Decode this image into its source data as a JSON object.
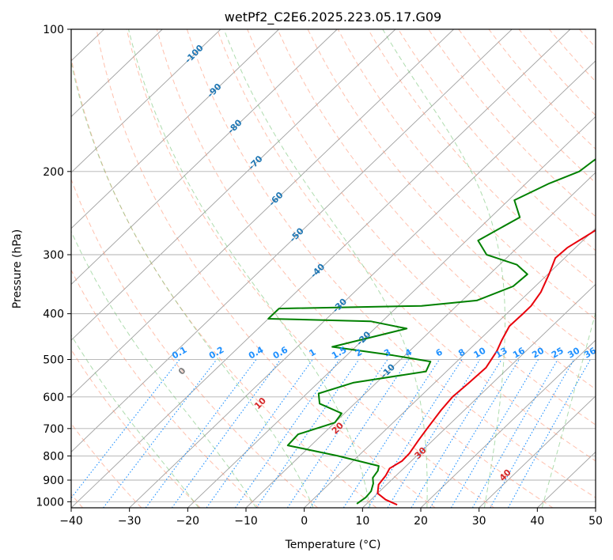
{
  "chart_data": {
    "type": "skew-t log-p",
    "title": "wetPf2_C2E6.2025.223.05.17.G09",
    "xlabel": "Temperature (°C)",
    "ylabel": "Pressure (hPa)",
    "xlim": [
      -40,
      50
    ],
    "ylim": [
      1030,
      100
    ],
    "x_ticks": [
      -40,
      -30,
      -20,
      -10,
      0,
      10,
      20,
      30,
      40,
      50
    ],
    "x_tick_labels": [
      "−40",
      "−30",
      "−20",
      "−10",
      "0",
      "10",
      "20",
      "30",
      "40",
      "50"
    ],
    "y_ticks": [
      100,
      200,
      300,
      400,
      500,
      600,
      700,
      800,
      900,
      1000
    ],
    "y_tick_labels": [
      "100",
      "200",
      "300",
      "400",
      "500",
      "600",
      "700",
      "800",
      "900",
      "1000"
    ],
    "y_scale": "log",
    "grid": true,
    "colors": {
      "temperature": "#e8000b",
      "dewpoint": "#008000",
      "isotherm": "#a0a0a0",
      "dry_adiabat": "#ff8c69",
      "moist_adiabat": "#6cbf6c",
      "mixing_ratio": "#1e90ff",
      "isotherm_label": "#1f77b4",
      "dry_adiabat_label": "#d62728",
      "freezing_label": "#7f7f7f"
    },
    "series": [
      {
        "name": "",
        "role": "temperature",
        "points": [
          [
            15.4,
            1015
          ],
          [
            12.5,
            990
          ],
          [
            10.0,
            960
          ],
          [
            8.6,
            920
          ],
          [
            8.2,
            880
          ],
          [
            7.6,
            850
          ],
          [
            8.4,
            820
          ],
          [
            8.3,
            790
          ],
          [
            7.5,
            740
          ],
          [
            6.9,
            700
          ],
          [
            6.0,
            640
          ],
          [
            5.6,
            600
          ],
          [
            5.9,
            560
          ],
          [
            6.1,
            520
          ],
          [
            5.0,
            480
          ],
          [
            3.9,
            455
          ],
          [
            2.7,
            425
          ],
          [
            2.8,
            400
          ],
          [
            2.8,
            385
          ],
          [
            2.0,
            360
          ],
          [
            0.2,
            330
          ],
          [
            -1.6,
            305
          ],
          [
            -1.4,
            290
          ],
          [
            -0.3,
            275
          ],
          [
            1.2,
            255
          ],
          [
            2.4,
            240
          ],
          [
            4.0,
            225
          ],
          [
            5.5,
            210
          ],
          [
            7.2,
            200
          ],
          [
            9.2,
            185
          ],
          [
            11.0,
            170
          ],
          [
            13.0,
            155
          ],
          [
            15.5,
            140
          ],
          [
            17.0,
            128
          ],
          [
            19.0,
            120
          ],
          [
            21.0,
            110
          ],
          [
            22.2,
            105
          ],
          [
            22.6,
            100
          ]
        ]
      },
      {
        "name": "",
        "role": "dewpoint",
        "points": [
          [
            8.3,
            1010
          ],
          [
            8.7,
            980
          ],
          [
            8.5,
            950
          ],
          [
            7.5,
            915
          ],
          [
            6.4,
            890
          ],
          [
            6.0,
            860
          ],
          [
            5.3,
            840
          ],
          [
            -3.5,
            800
          ],
          [
            -14.0,
            760
          ],
          [
            -14.2,
            720
          ],
          [
            -10.0,
            680
          ],
          [
            -10.5,
            650
          ],
          [
            -16.0,
            620
          ],
          [
            -18.0,
            590
          ],
          [
            -14.0,
            560
          ],
          [
            -3.5,
            530
          ],
          [
            -4.5,
            505
          ],
          [
            -12.0,
            490
          ],
          [
            -24.0,
            470
          ],
          [
            -14.5,
            430
          ],
          [
            -22.0,
            415
          ],
          [
            -40.0,
            410
          ],
          [
            -40.0,
            390
          ],
          [
            -16.0,
            385
          ],
          [
            -7.5,
            375
          ],
          [
            -3.8,
            350
          ],
          [
            -3.5,
            330
          ],
          [
            -7.0,
            315
          ],
          [
            -14.0,
            300
          ],
          [
            -18.0,
            280
          ],
          [
            -15.0,
            250
          ],
          [
            -19.0,
            230
          ],
          [
            -16.0,
            212
          ],
          [
            -13.0,
            200
          ],
          [
            -12.5,
            190
          ],
          [
            -11.0,
            172
          ],
          [
            -6.0,
            150
          ],
          [
            -2.5,
            135
          ],
          [
            -1.5,
            122
          ],
          [
            2.0,
            108
          ],
          [
            5.0,
            100
          ]
        ]
      }
    ],
    "isotherm_labels": [
      {
        "value": -100,
        "text": "-100"
      },
      {
        "value": -90,
        "text": "-90"
      },
      {
        "value": -80,
        "text": "-80"
      },
      {
        "value": -70,
        "text": "-70"
      },
      {
        "value": -60,
        "text": "-60"
      },
      {
        "value": -50,
        "text": "-50"
      },
      {
        "value": -40,
        "text": "-40"
      },
      {
        "value": -30,
        "text": "-30"
      },
      {
        "value": -20,
        "text": "-20"
      },
      {
        "value": -10,
        "text": "-10"
      }
    ],
    "mixing_ratio_labels": [
      "0.1",
      "0.2",
      "0.4",
      "0.6",
      "1",
      "1.5",
      "2",
      "3",
      "4",
      "6",
      "8",
      "10",
      "13",
      "16",
      "20",
      "25",
      "30",
      "36"
    ],
    "mixing_ratio_values": [
      0.1,
      0.2,
      0.4,
      0.6,
      1,
      1.5,
      2,
      3,
      4,
      6,
      8,
      10,
      13,
      16,
      20,
      25,
      30,
      36
    ],
    "dry_adiabat_labels": [
      "0",
      "10",
      "20",
      "30",
      "40"
    ],
    "dry_adiabat_label_values": [
      0,
      10,
      20,
      30,
      40
    ]
  }
}
